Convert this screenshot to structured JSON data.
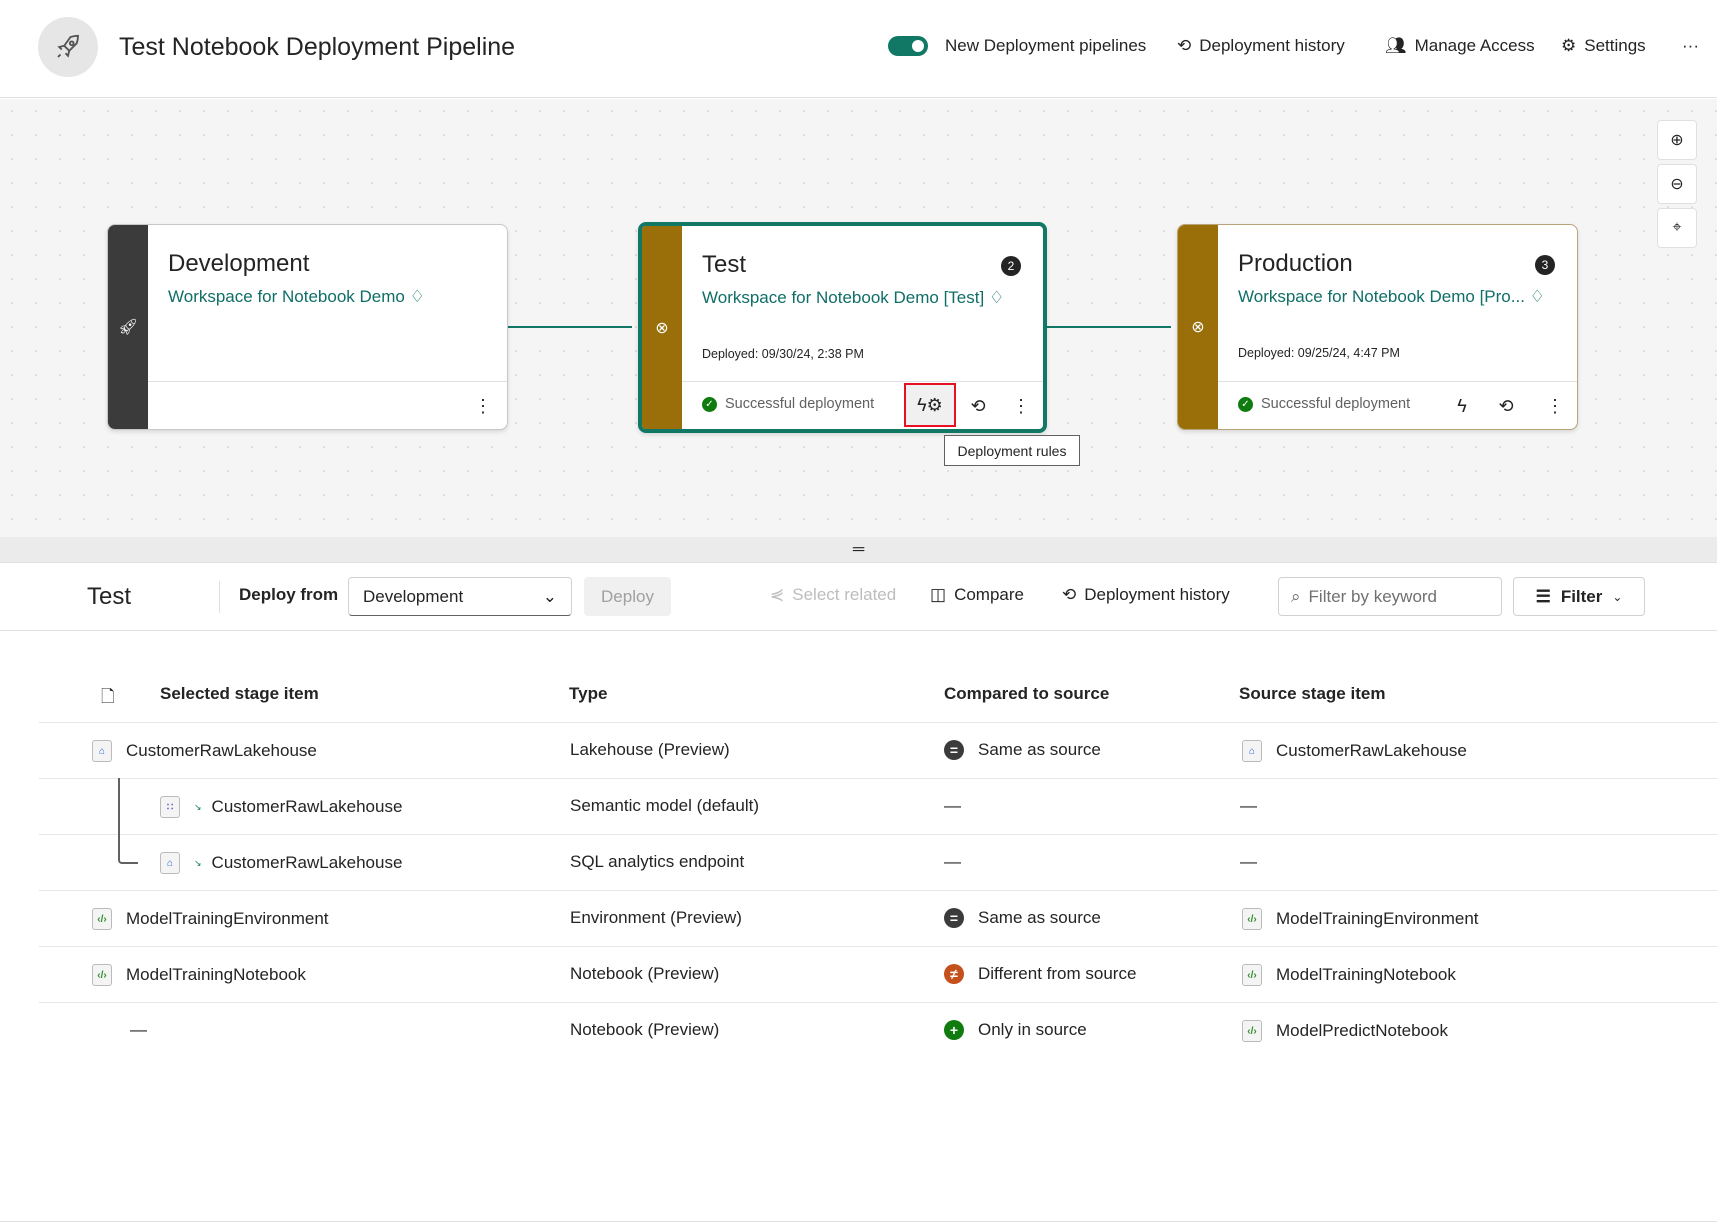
{
  "header": {
    "title": "Test Notebook Deployment Pipeline",
    "toggle_label": "New Deployment pipelines",
    "toggle_on": true,
    "history": "Deployment history",
    "access": "Manage Access",
    "settings": "Settings",
    "more": "···"
  },
  "colors": {
    "accent": "#117865",
    "stage_band": "#9a6f0a",
    "dev_band": "#3b3b3b",
    "highlight": "#e81123"
  },
  "stages": [
    {
      "name": "Development",
      "workspace": "Workspace for Notebook Demo",
      "deployed": "",
      "status": "",
      "badge": ""
    },
    {
      "name": "Test",
      "workspace": "Workspace for Notebook Demo [Test]",
      "deployed": "Deployed: 09/30/24, 2:38 PM",
      "status": "Successful deployment",
      "badge": "2"
    },
    {
      "name": "Production",
      "workspace": "Workspace for Notebook Demo [Pro...",
      "deployed": "Deployed: 09/25/24, 4:47 PM",
      "status": "Successful deployment",
      "badge": "3"
    }
  ],
  "tooltip": "Deployment rules",
  "toolbar": {
    "stage": "Test",
    "deploy_from_label": "Deploy from",
    "deploy_from_value": "Development",
    "deploy": "Deploy",
    "select_related": "Select related",
    "compare": "Compare",
    "history": "Deployment history",
    "search_placeholder": "Filter by keyword",
    "filter": "Filter"
  },
  "table": {
    "headers": [
      "Selected stage item",
      "Type",
      "Compared to source",
      "Source stage item"
    ],
    "rows": [
      {
        "name": "CustomerRawLakehouse",
        "type": "Lakehouse (Preview)",
        "compare": "Same as source",
        "cmp_kind": "same",
        "source": "CustomerRawLakehouse",
        "icon": "lakehouse-icon",
        "child": false
      },
      {
        "name": "CustomerRawLakehouse",
        "type": "Semantic model (default)",
        "compare": "—",
        "cmp_kind": "",
        "source": "—",
        "icon": "semantic-model-icon",
        "child": true
      },
      {
        "name": "CustomerRawLakehouse",
        "type": "SQL analytics endpoint",
        "compare": "—",
        "cmp_kind": "",
        "source": "—",
        "icon": "sql-endpoint-icon",
        "child": true
      },
      {
        "name": "ModelTrainingEnvironment",
        "type": "Environment (Preview)",
        "compare": "Same as source",
        "cmp_kind": "same",
        "source": "ModelTrainingEnvironment",
        "icon": "environment-icon",
        "child": false
      },
      {
        "name": "ModelTrainingNotebook",
        "type": "Notebook (Preview)",
        "compare": "Different from source",
        "cmp_kind": "different",
        "source": "ModelTrainingNotebook",
        "icon": "notebook-icon",
        "child": false
      },
      {
        "name": "—",
        "type": "Notebook (Preview)",
        "compare": "Only in source",
        "cmp_kind": "only",
        "source": "ModelPredictNotebook",
        "icon": "notebook-icon",
        "child": false
      }
    ]
  }
}
